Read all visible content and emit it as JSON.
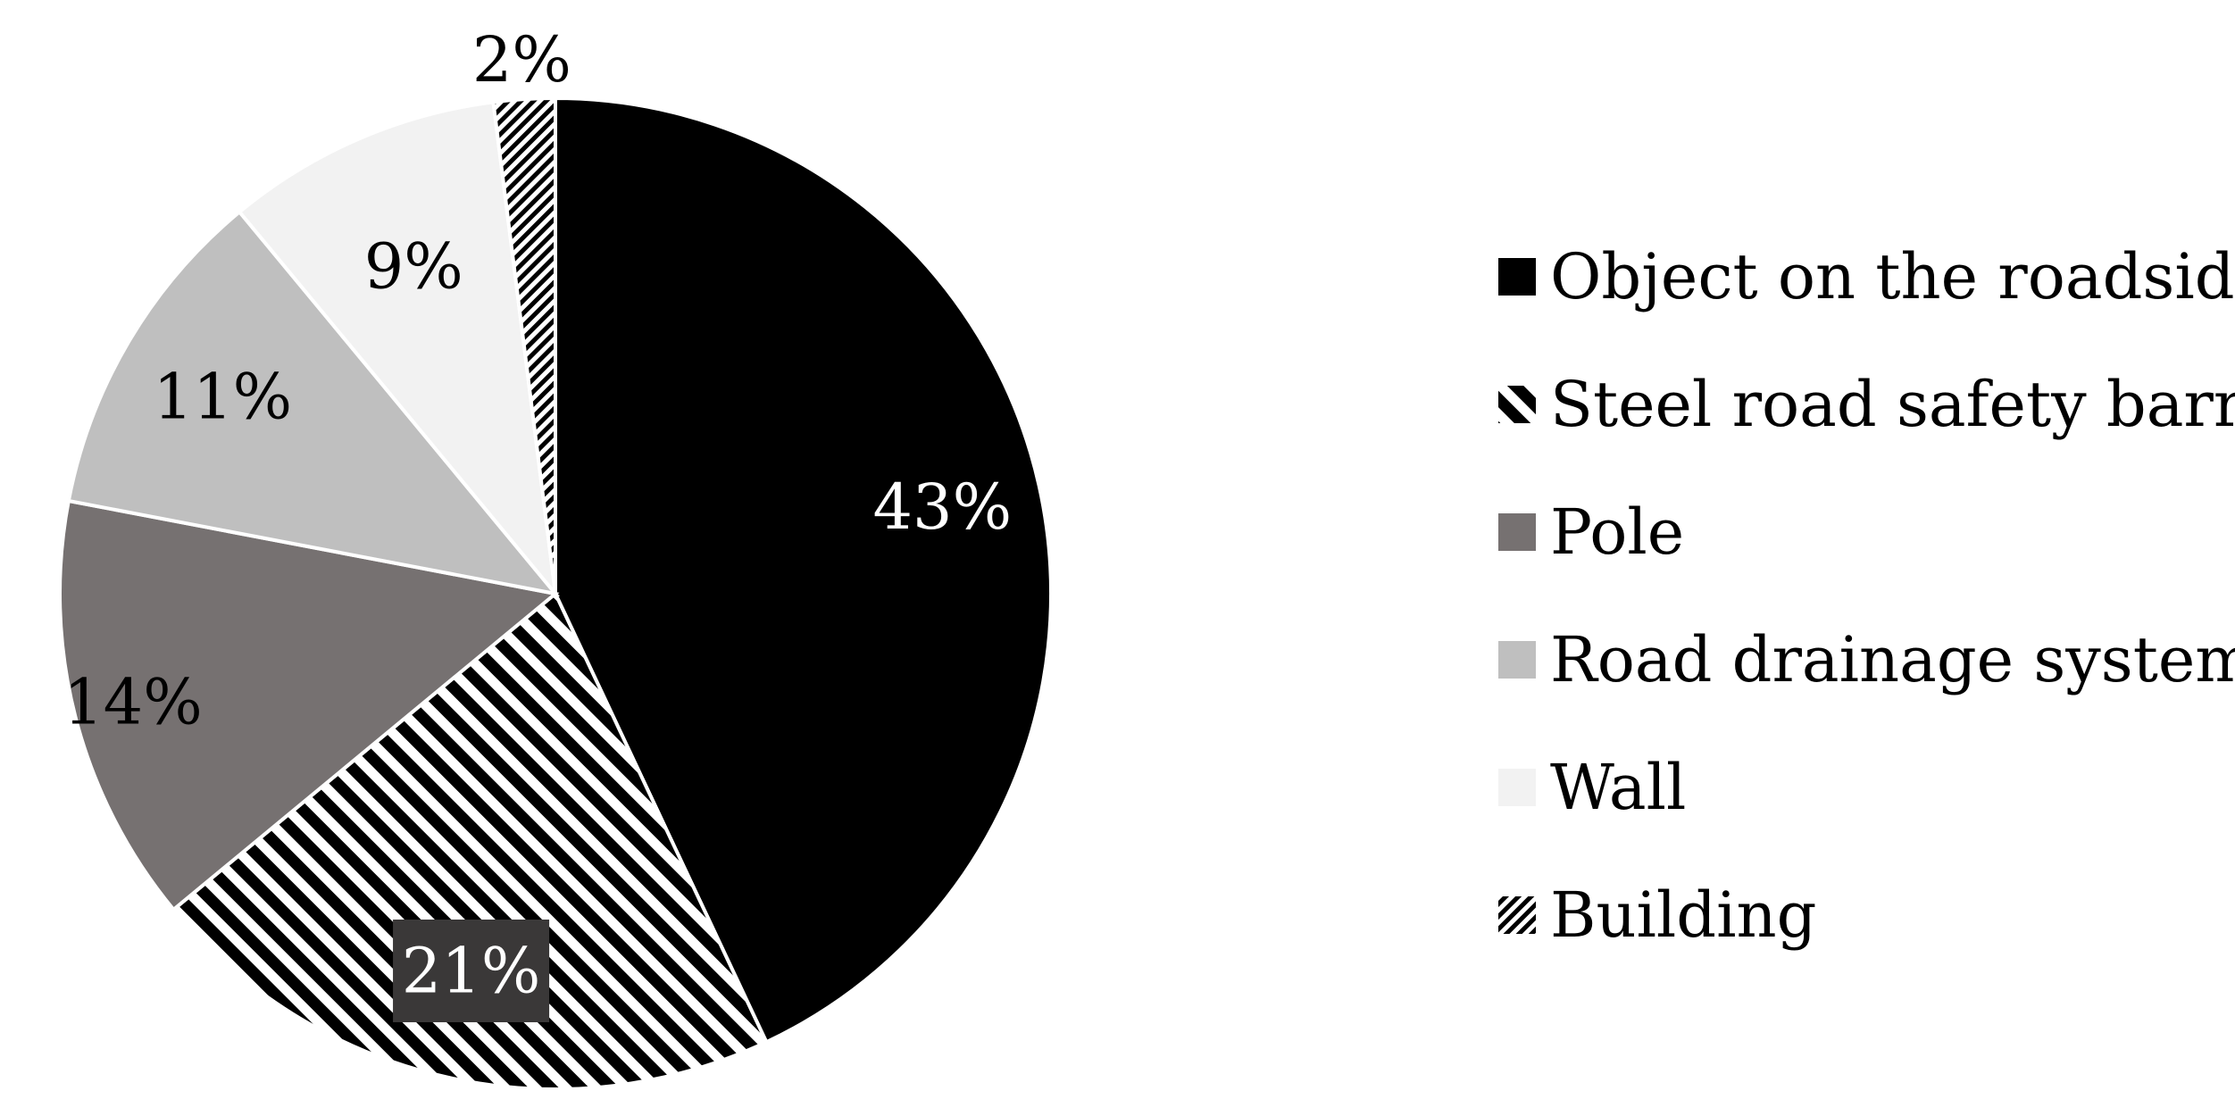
{
  "chart_data": {
    "type": "pie",
    "title": "",
    "categories": [
      "Object on the roadside",
      "Steel road safety barrier",
      "Pole",
      "Road drainage system",
      "Wall",
      "Building"
    ],
    "values": [
      43,
      21,
      14,
      11,
      9,
      2
    ],
    "data_labels": [
      "43%",
      "21%",
      "14%",
      "11%",
      "9%",
      "2%"
    ],
    "unit": "%",
    "legend": {
      "position": "right",
      "entries": [
        "Object on the roadside",
        "Steel road safety barrier",
        "Pole",
        "Road drainage system",
        "Wall",
        "Building"
      ]
    },
    "colors": {
      "Object on the roadside": "#000000",
      "Steel road safety barrier": "hatch-black-white",
      "Pole": "#767171",
      "Road drainage system": "#bfbfbf",
      "Wall": "#f2f2f2",
      "Building": "hatch-fine-black-white"
    },
    "start_angle": "12 o'clock",
    "direction": "clockwise"
  }
}
